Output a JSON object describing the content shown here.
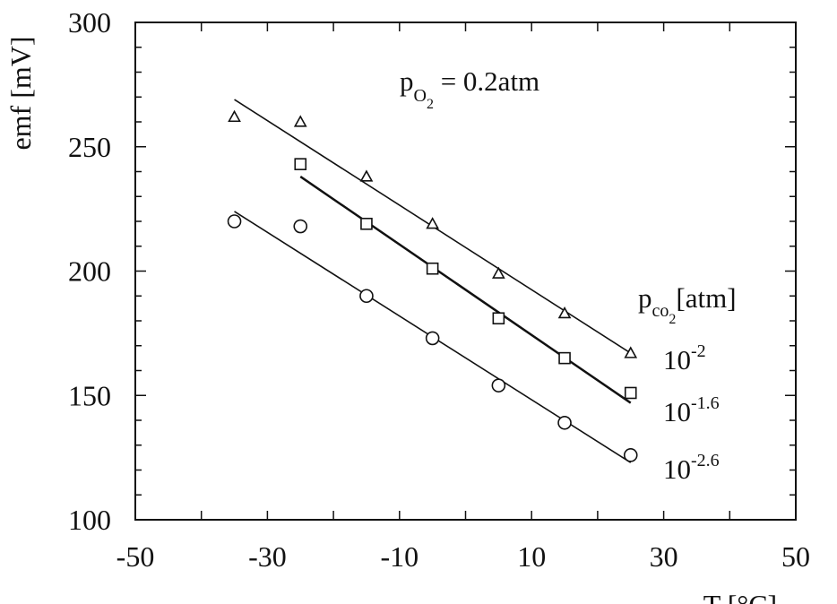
{
  "chart_data": {
    "type": "scatter",
    "title": "",
    "xlabel": "T [°C]",
    "ylabel": "emf [mV]",
    "xlim": [
      -50,
      50
    ],
    "ylim": [
      100,
      300
    ],
    "xticks": [
      -50,
      -30,
      -10,
      10,
      30,
      50
    ],
    "yticks": [
      100,
      150,
      200,
      250,
      300
    ],
    "xtick_labels": [
      "-50",
      "-30",
      "-10",
      "10",
      "30",
      "50"
    ],
    "ytick_labels": [
      "100",
      "150",
      "200",
      "250",
      "300"
    ],
    "grid": false,
    "annotation": {
      "base": "p",
      "sub": "O",
      "sub_sub": "2",
      "rest": " = 0.2atm"
    },
    "legend_title": {
      "base": "p",
      "sub": "co",
      "sub_sub": "2",
      "rest": "[atm]"
    },
    "series": [
      {
        "marker": "triangle",
        "label_base": "10",
        "label_exp": "-2",
        "x": [
          -35,
          -25,
          -15,
          -5,
          5,
          15,
          25
        ],
        "y": [
          262,
          260,
          238,
          219,
          199,
          183,
          167
        ],
        "fit": {
          "x": [
            -35,
            25
          ],
          "y": [
            269,
            167
          ]
        }
      },
      {
        "marker": "square",
        "label_base": "10",
        "label_exp": "-1.6",
        "x": [
          -25,
          -15,
          -5,
          5,
          15,
          25
        ],
        "y": [
          243,
          219,
          201,
          181,
          165,
          151
        ],
        "fit": {
          "x": [
            -25,
            25
          ],
          "y": [
            238,
            147
          ]
        }
      },
      {
        "marker": "circle",
        "label_base": "10",
        "label_exp": "-2.6",
        "x": [
          -35,
          -25,
          -15,
          -5,
          5,
          15,
          25
        ],
        "y": [
          220,
          218,
          190,
          173,
          154,
          139,
          126
        ],
        "fit": {
          "x": [
            -35,
            25
          ],
          "y": [
            224,
            123
          ]
        }
      }
    ]
  }
}
